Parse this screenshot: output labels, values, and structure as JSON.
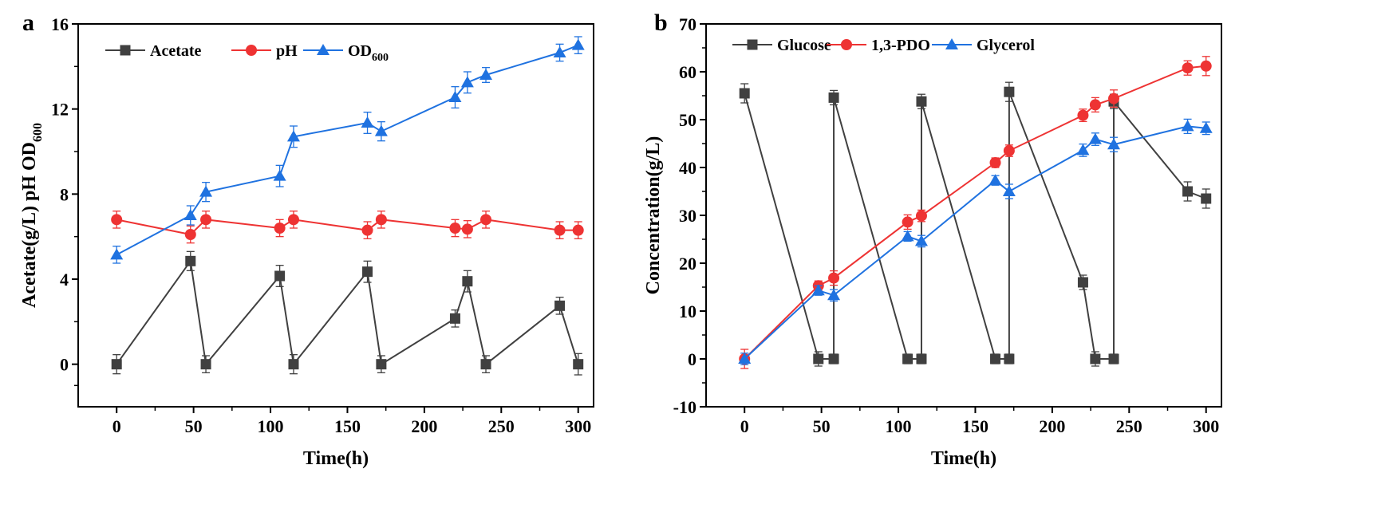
{
  "colors": {
    "black_series": "#404040",
    "red_series": "#ee3333",
    "blue_series": "#1f72e0",
    "frame": "#000000"
  },
  "chart_data": [
    {
      "panel_label": "a",
      "type": "line",
      "title": "",
      "xlabel": "Time(h)",
      "ylabel": "Acetate(g/L)  pH  OD",
      "ylabel_sub": "600",
      "xlim": [
        -25,
        310
      ],
      "ylim": [
        -2,
        16
      ],
      "xticks": [
        0,
        50,
        100,
        150,
        200,
        250,
        300
      ],
      "yticks": [
        0,
        4,
        8,
        12,
        16
      ],
      "legend_placement": "top-left",
      "series": [
        {
          "name": "Acetate",
          "color": "#404040",
          "marker": "square",
          "x": [
            0,
            48,
            58,
            106,
            115,
            163,
            172,
            220,
            228,
            240,
            288,
            300
          ],
          "y": [
            0,
            4.85,
            0,
            4.15,
            0,
            4.35,
            0,
            2.15,
            3.9,
            0,
            2.75,
            0
          ],
          "err": [
            0.45,
            0.45,
            0.4,
            0.5,
            0.45,
            0.5,
            0.4,
            0.4,
            0.5,
            0.4,
            0.4,
            0.5
          ]
        },
        {
          "name": "pH",
          "color": "#ee3333",
          "marker": "circle",
          "x": [
            0,
            48,
            58,
            106,
            115,
            163,
            172,
            220,
            228,
            240,
            288,
            300
          ],
          "y": [
            6.8,
            6.1,
            6.8,
            6.4,
            6.8,
            6.3,
            6.8,
            6.4,
            6.35,
            6.8,
            6.3,
            6.3
          ],
          "err": [
            0.4,
            0.4,
            0.4,
            0.4,
            0.4,
            0.4,
            0.4,
            0.4,
            0.4,
            0.4,
            0.4,
            0.4
          ]
        },
        {
          "name": "OD",
          "name_sub": "600",
          "color": "#1f72e0",
          "marker": "triangle",
          "x": [
            0,
            48,
            58,
            106,
            115,
            163,
            172,
            220,
            228,
            240,
            288,
            300
          ],
          "y": [
            5.15,
            7.0,
            8.1,
            8.85,
            10.7,
            11.35,
            10.95,
            12.55,
            13.25,
            13.6,
            14.65,
            15.0
          ],
          "err": [
            0.4,
            0.45,
            0.45,
            0.5,
            0.5,
            0.5,
            0.45,
            0.5,
            0.5,
            0.35,
            0.4,
            0.4
          ]
        }
      ]
    },
    {
      "panel_label": "b",
      "type": "line",
      "title": "",
      "xlabel": "Time(h)",
      "ylabel": "Concentration(g/L)",
      "xlim": [
        -25,
        310
      ],
      "ylim": [
        -10,
        70
      ],
      "xticks": [
        0,
        50,
        100,
        150,
        200,
        250,
        300
      ],
      "yticks": [
        -10,
        0,
        10,
        20,
        30,
        40,
        50,
        60,
        70
      ],
      "legend_placement": "top-left",
      "series": [
        {
          "name": "Glucose",
          "color": "#404040",
          "marker": "square",
          "x": [
            0,
            48,
            58,
            58,
            106,
            115,
            115,
            163,
            172,
            172,
            220,
            228,
            240,
            240,
            288,
            300
          ],
          "y": [
            55.5,
            0,
            0,
            54.6,
            0,
            0,
            53.8,
            0,
            0,
            55.8,
            16,
            0,
            0,
            53.8,
            35,
            33.5
          ],
          "err": [
            2,
            1.5,
            1,
            1.5,
            1,
            1,
            1.5,
            1,
            1,
            2,
            1.5,
            1.5,
            1,
            1.5,
            2,
            2
          ]
        },
        {
          "name": "1,3-PDO",
          "color": "#ee3333",
          "marker": "circle",
          "x": [
            0,
            48,
            58,
            106,
            115,
            163,
            172,
            220,
            228,
            240,
            288,
            300
          ],
          "y": [
            0,
            15.3,
            16.9,
            28.6,
            29.9,
            41,
            43.5,
            50.9,
            53.1,
            54.4,
            60.8,
            61.2
          ],
          "err": [
            2,
            1,
            1.5,
            1.5,
            1.2,
            1,
            1.2,
            1.3,
            1.5,
            1.8,
            1.5,
            2
          ]
        },
        {
          "name": "Glycerol",
          "color": "#1f72e0",
          "marker": "triangle",
          "x": [
            0,
            48,
            58,
            106,
            115,
            163,
            172,
            220,
            228,
            240,
            288,
            300
          ],
          "y": [
            0,
            14.3,
            13.3,
            25.6,
            24.6,
            37.3,
            35,
            43.6,
            45.9,
            44.8,
            48.6,
            48.2
          ],
          "err": [
            1.2,
            1,
            1.2,
            1,
            1.2,
            1,
            1.5,
            1.3,
            1.3,
            1.5,
            1.5,
            1.3
          ]
        }
      ]
    }
  ]
}
